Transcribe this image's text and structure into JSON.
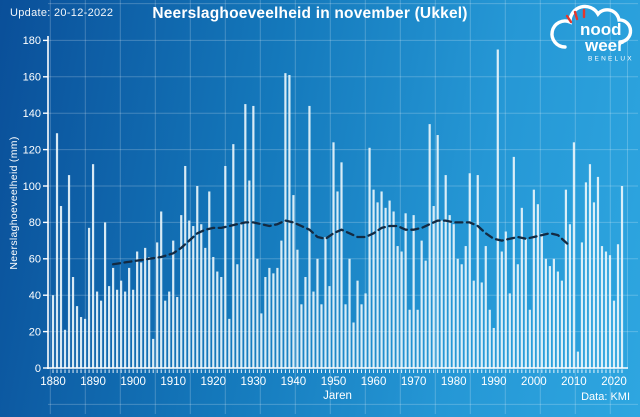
{
  "header": {
    "update_label": "Update: 20-12-2022",
    "source_label": "Data: KMI"
  },
  "logo": {
    "word_top": "nood",
    "word_bottom": "weer",
    "subtitle": "BENELUX",
    "accent_color": "#e5372b",
    "text_color": "#ffffff"
  },
  "colors": {
    "background_start": "#0a4f99",
    "background_mid": "#1478bb",
    "background_end": "#2ea6e0",
    "grid": "rgba(255,255,255,0.22)",
    "axis": "#ffffff",
    "bar": "#e9f5fb",
    "trend": "#132a42",
    "text": "#ffffff"
  },
  "chart_data": {
    "type": "bar",
    "title": "Neerslaghoeveelheid in november (Ukkel)",
    "xlabel": "Jaren",
    "ylabel": "Neerslaghoeveelheid (mm)",
    "ylim": [
      0,
      180
    ],
    "y_ticks": [
      0,
      20,
      40,
      60,
      80,
      100,
      120,
      140,
      160,
      180
    ],
    "x_ticks": [
      1880,
      1890,
      1900,
      1910,
      1920,
      1930,
      1940,
      1950,
      1960,
      1970,
      1980,
      1990,
      2000,
      2010,
      2020
    ],
    "grid": true,
    "legend": "none",
    "start_year": 1880,
    "end_year": 2022,
    "series": [
      {
        "name": "Neerslag november (mm)",
        "type": "bar",
        "values": [
          40,
          129,
          89,
          21,
          106,
          50,
          34,
          28,
          27,
          77,
          112,
          42,
          37,
          80,
          45,
          55,
          43,
          48,
          42,
          55,
          43,
          64,
          58,
          66,
          61,
          16,
          69,
          86,
          37,
          42,
          70,
          39,
          84,
          111,
          81,
          78,
          100,
          79,
          66,
          97,
          61,
          53,
          50,
          111,
          27,
          123,
          57,
          80,
          145,
          103,
          144,
          60,
          30,
          50,
          55,
          52,
          55,
          70,
          162,
          161,
          95,
          65,
          35,
          50,
          144,
          42,
          60,
          35,
          72,
          45,
          124,
          97,
          113,
          35,
          60,
          25,
          48,
          35,
          41,
          121,
          98,
          91,
          97,
          88,
          92,
          86,
          67,
          64,
          85,
          32,
          84,
          32,
          70,
          59,
          134,
          89,
          128,
          81,
          106,
          84,
          79,
          60,
          57,
          67,
          107,
          48,
          106,
          47,
          67,
          32,
          22,
          175,
          64,
          75,
          41,
          116,
          57,
          88,
          71,
          32,
          98,
          90,
          74,
          60,
          56,
          60,
          53,
          48,
          98,
          79,
          124,
          9,
          69,
          102,
          112,
          91,
          105,
          67,
          64,
          62,
          37,
          68,
          100
        ]
      },
      {
        "name": "Voortschrijdend gemiddelde",
        "type": "line",
        "dashed": true,
        "points": [
          [
            1895,
            57
          ],
          [
            1898,
            58
          ],
          [
            1901,
            59
          ],
          [
            1904,
            60
          ],
          [
            1907,
            61
          ],
          [
            1910,
            63
          ],
          [
            1912,
            66
          ],
          [
            1914,
            70
          ],
          [
            1916,
            74
          ],
          [
            1918,
            76
          ],
          [
            1920,
            77
          ],
          [
            1922,
            77
          ],
          [
            1924,
            78
          ],
          [
            1926,
            79
          ],
          [
            1928,
            80
          ],
          [
            1930,
            80
          ],
          [
            1932,
            79
          ],
          [
            1934,
            78
          ],
          [
            1936,
            79
          ],
          [
            1938,
            81
          ],
          [
            1940,
            80
          ],
          [
            1942,
            78
          ],
          [
            1944,
            76
          ],
          [
            1946,
            72
          ],
          [
            1948,
            71
          ],
          [
            1950,
            74
          ],
          [
            1952,
            76
          ],
          [
            1954,
            74
          ],
          [
            1956,
            72
          ],
          [
            1958,
            72
          ],
          [
            1960,
            74
          ],
          [
            1962,
            77
          ],
          [
            1964,
            78
          ],
          [
            1966,
            78
          ],
          [
            1968,
            76
          ],
          [
            1970,
            76
          ],
          [
            1972,
            77
          ],
          [
            1974,
            79
          ],
          [
            1976,
            81
          ],
          [
            1978,
            81
          ],
          [
            1980,
            80
          ],
          [
            1982,
            80
          ],
          [
            1984,
            80
          ],
          [
            1986,
            78
          ],
          [
            1988,
            74
          ],
          [
            1990,
            71
          ],
          [
            1992,
            70
          ],
          [
            1994,
            71
          ],
          [
            1996,
            72
          ],
          [
            1998,
            71
          ],
          [
            2000,
            72
          ],
          [
            2002,
            73
          ],
          [
            2004,
            74
          ],
          [
            2006,
            73
          ],
          [
            2008,
            69
          ],
          [
            2009,
            67
          ]
        ]
      }
    ]
  }
}
